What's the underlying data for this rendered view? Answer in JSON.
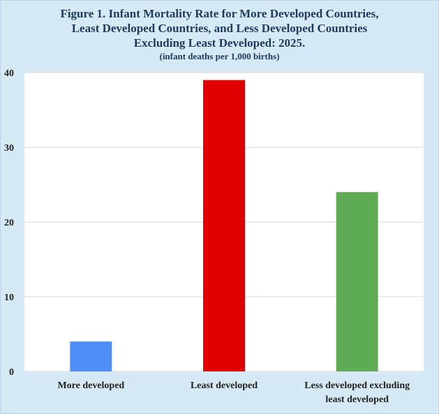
{
  "title_lines": [
    "Figure 1. Infant Mortality Rate for More Developed Countries,",
    "Least Developed Countries, and Less Developed Countries",
    "Excluding Least Developed: 2025."
  ],
  "subtitle": "(infant deaths per 1,000 births)",
  "colors": {
    "background": "#d6eaf5",
    "plot_area": "#ffffff",
    "gridline": "#d9d9d9"
  },
  "chart_data": {
    "type": "bar",
    "title": "Figure 1. Infant Mortality Rate for More Developed Countries, Least Developed Countries, and Less Developed Countries Excluding Least Developed: 2025.",
    "subtitle": "(infant deaths per 1,000 births)",
    "categories": [
      [
        "More developed"
      ],
      [
        "Least developed"
      ],
      [
        "Less developed excluding",
        "least developed"
      ]
    ],
    "values": [
      4,
      39,
      24
    ],
    "bar_colors": [
      "#4f8ef7",
      "#e00000",
      "#5faa55"
    ],
    "ylim": [
      0,
      40
    ],
    "yticks": [
      0,
      10,
      20,
      30,
      40
    ],
    "grid": true,
    "legend": "none",
    "xlabel": "",
    "ylabel": ""
  }
}
